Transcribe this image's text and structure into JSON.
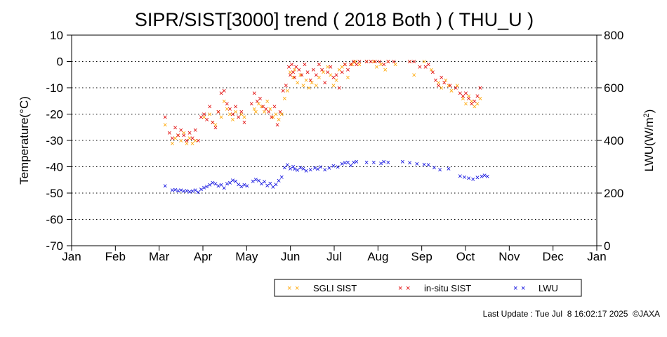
{
  "chart_data": {
    "type": "scatter",
    "title": "SIPR/SIST[3000] trend ( 2018 Both ) ( THU_U )",
    "x_months": [
      "Jan",
      "Feb",
      "Mar",
      "Apr",
      "May",
      "Jun",
      "Jul",
      "Aug",
      "Sep",
      "Oct",
      "Nov",
      "Dec",
      "Jan"
    ],
    "ylabel_left": "Temperature(°C)",
    "ylabel_right_main": "LWU(W/m",
    "ylabel_right_sup": "2",
    "ylabel_right_close": ")",
    "ylim_left": [
      -70,
      10
    ],
    "yticks_left": [
      "10",
      "0",
      "-10",
      "-20",
      "-30",
      "-40",
      "-50",
      "-60",
      "-70"
    ],
    "ylim_right": [
      0,
      800
    ],
    "yticks_right": [
      "800",
      "600",
      "400",
      "200",
      "0"
    ],
    "grid": "horizontal-dotted",
    "marker_glyph": "×",
    "colors": {
      "sgli": "#ffa500",
      "insitu": "#e00000",
      "lwu": "#0000dd"
    },
    "series": [
      {
        "name": "SGLI SIST",
        "axis": "left",
        "points": [
          [
            65,
            -24
          ],
          [
            70,
            -31
          ],
          [
            72,
            -29
          ],
          [
            74,
            -28
          ],
          [
            76,
            -30
          ],
          [
            78,
            -27
          ],
          [
            80,
            -31
          ],
          [
            82,
            -29
          ],
          [
            84,
            -31
          ],
          [
            86,
            -30
          ],
          [
            92,
            -21
          ],
          [
            96,
            -20
          ],
          [
            98,
            -23
          ],
          [
            100,
            -24
          ],
          [
            102,
            -19
          ],
          [
            104,
            -21
          ],
          [
            106,
            -15
          ],
          [
            108,
            -18
          ],
          [
            110,
            -20
          ],
          [
            112,
            -22
          ],
          [
            114,
            -19
          ],
          [
            118,
            -20
          ],
          [
            120,
            -21
          ],
          [
            127,
            -18
          ],
          [
            128,
            -19
          ],
          [
            130,
            -16
          ],
          [
            132,
            -17
          ],
          [
            134,
            -19
          ],
          [
            136,
            -15
          ],
          [
            138,
            -18
          ],
          [
            140,
            -21
          ],
          [
            142,
            -20
          ],
          [
            144,
            -22
          ],
          [
            146,
            -20
          ],
          [
            148,
            -14
          ],
          [
            150,
            -11
          ],
          [
            152,
            -4
          ],
          [
            154,
            -6
          ],
          [
            155,
            -3
          ],
          [
            157,
            -8
          ],
          [
            159,
            -5
          ],
          [
            161,
            -9
          ],
          [
            163,
            -7
          ],
          [
            165,
            -10
          ],
          [
            167,
            -8
          ],
          [
            170,
            -9
          ],
          [
            172,
            -6
          ],
          [
            175,
            -4
          ],
          [
            178,
            -2
          ],
          [
            180,
            -5
          ],
          [
            182,
            -9
          ],
          [
            184,
            -7
          ],
          [
            186,
            -3
          ],
          [
            188,
            -2
          ],
          [
            190,
            -1
          ],
          [
            192,
            -6
          ],
          [
            195,
            -1
          ],
          [
            197,
            0
          ],
          [
            200,
            -1
          ],
          [
            205,
            0
          ],
          [
            210,
            0
          ],
          [
            212,
            -2
          ],
          [
            215,
            -1
          ],
          [
            218,
            -3
          ],
          [
            220,
            0
          ],
          [
            225,
            -1
          ],
          [
            235,
            0
          ],
          [
            238,
            -5
          ],
          [
            245,
            0
          ],
          [
            250,
            -3
          ],
          [
            255,
            -8
          ],
          [
            257,
            -10
          ],
          [
            260,
            -7
          ],
          [
            262,
            -9
          ],
          [
            264,
            -11
          ],
          [
            268,
            -9
          ],
          [
            272,
            -14
          ],
          [
            274,
            -16
          ],
          [
            276,
            -13
          ],
          [
            278,
            -15
          ],
          [
            280,
            -17
          ],
          [
            282,
            -16
          ],
          [
            284,
            -14
          ]
        ]
      },
      {
        "name": "in-situ SIST",
        "axis": "left",
        "points": [
          [
            65,
            -21
          ],
          [
            68,
            -27
          ],
          [
            70,
            -29
          ],
          [
            72,
            -25
          ],
          [
            74,
            -28
          ],
          [
            76,
            -26
          ],
          [
            78,
            -28
          ],
          [
            80,
            -30
          ],
          [
            82,
            -27
          ],
          [
            84,
            -29
          ],
          [
            86,
            -26
          ],
          [
            88,
            -30
          ],
          [
            90,
            -21
          ],
          [
            92,
            -20
          ],
          [
            94,
            -22
          ],
          [
            96,
            -17
          ],
          [
            98,
            -23
          ],
          [
            100,
            -25
          ],
          [
            102,
            -19
          ],
          [
            104,
            -12
          ],
          [
            106,
            -11
          ],
          [
            108,
            -16
          ],
          [
            110,
            -18
          ],
          [
            112,
            -20
          ],
          [
            114,
            -17
          ],
          [
            116,
            -21
          ],
          [
            118,
            -19
          ],
          [
            120,
            -23
          ],
          [
            125,
            -16
          ],
          [
            127,
            -12
          ],
          [
            129,
            -15
          ],
          [
            131,
            -14
          ],
          [
            133,
            -17
          ],
          [
            135,
            -18
          ],
          [
            137,
            -19
          ],
          [
            139,
            -21
          ],
          [
            141,
            -17
          ],
          [
            143,
            -24
          ],
          [
            145,
            -19
          ],
          [
            147,
            -11
          ],
          [
            149,
            -9
          ],
          [
            151,
            -2
          ],
          [
            152,
            -5
          ],
          [
            153,
            -1
          ],
          [
            154,
            -4
          ],
          [
            155,
            -6
          ],
          [
            156,
            -2
          ],
          [
            158,
            -3
          ],
          [
            160,
            -5
          ],
          [
            162,
            -1
          ],
          [
            164,
            -4
          ],
          [
            166,
            -7
          ],
          [
            168,
            -3
          ],
          [
            170,
            -5
          ],
          [
            172,
            -1
          ],
          [
            174,
            -3
          ],
          [
            176,
            -8
          ],
          [
            178,
            -4
          ],
          [
            180,
            -2
          ],
          [
            182,
            -6
          ],
          [
            184,
            -5
          ],
          [
            186,
            -10
          ],
          [
            188,
            -4
          ],
          [
            190,
            -1
          ],
          [
            192,
            -3
          ],
          [
            194,
            -1
          ],
          [
            196,
            0
          ],
          [
            198,
            -1
          ],
          [
            200,
            0
          ],
          [
            205,
            0
          ],
          [
            208,
            0
          ],
          [
            211,
            0
          ],
          [
            214,
            0
          ],
          [
            217,
            -1
          ],
          [
            220,
            0
          ],
          [
            224,
            0
          ],
          [
            235,
            0
          ],
          [
            238,
            0
          ],
          [
            242,
            -2
          ],
          [
            246,
            -2
          ],
          [
            248,
            -1
          ],
          [
            251,
            -4
          ],
          [
            253,
            -7
          ],
          [
            255,
            -9
          ],
          [
            257,
            -6
          ],
          [
            259,
            -8
          ],
          [
            263,
            -9
          ],
          [
            267,
            -10
          ],
          [
            270,
            -12
          ],
          [
            272,
            -13
          ],
          [
            274,
            -12
          ],
          [
            276,
            -14
          ],
          [
            278,
            -16
          ],
          [
            280,
            -15
          ],
          [
            282,
            -13
          ],
          [
            284,
            -10
          ]
        ]
      },
      {
        "name": "LWU",
        "axis": "right",
        "points": [
          [
            65,
            228
          ],
          [
            70,
            212
          ],
          [
            72,
            214
          ],
          [
            74,
            210
          ],
          [
            76,
            212
          ],
          [
            78,
            208
          ],
          [
            80,
            210
          ],
          [
            82,
            206
          ],
          [
            84,
            208
          ],
          [
            86,
            212
          ],
          [
            88,
            204
          ],
          [
            90,
            215
          ],
          [
            92,
            222
          ],
          [
            94,
            226
          ],
          [
            96,
            232
          ],
          [
            98,
            240
          ],
          [
            100,
            236
          ],
          [
            102,
            228
          ],
          [
            104,
            232
          ],
          [
            106,
            220
          ],
          [
            108,
            236
          ],
          [
            110,
            240
          ],
          [
            112,
            250
          ],
          [
            114,
            246
          ],
          [
            116,
            234
          ],
          [
            118,
            226
          ],
          [
            120,
            232
          ],
          [
            122,
            228
          ],
          [
            126,
            246
          ],
          [
            128,
            252
          ],
          [
            130,
            248
          ],
          [
            132,
            236
          ],
          [
            134,
            244
          ],
          [
            136,
            230
          ],
          [
            138,
            238
          ],
          [
            140,
            224
          ],
          [
            142,
            234
          ],
          [
            144,
            248
          ],
          [
            146,
            262
          ],
          [
            148,
            298
          ],
          [
            150,
            308
          ],
          [
            152,
            294
          ],
          [
            154,
            302
          ],
          [
            155,
            292
          ],
          [
            157,
            288
          ],
          [
            159,
            298
          ],
          [
            161,
            294
          ],
          [
            163,
            286
          ],
          [
            166,
            290
          ],
          [
            169,
            296
          ],
          [
            171,
            292
          ],
          [
            173,
            300
          ],
          [
            176,
            290
          ],
          [
            179,
            296
          ],
          [
            182,
            304
          ],
          [
            185,
            300
          ],
          [
            188,
            312
          ],
          [
            190,
            316
          ],
          [
            192,
            318
          ],
          [
            194,
            306
          ],
          [
            196,
            318
          ],
          [
            198,
            320
          ],
          [
            205,
            318
          ],
          [
            210,
            318
          ],
          [
            215,
            314
          ],
          [
            217,
            320
          ],
          [
            220,
            318
          ],
          [
            230,
            320
          ],
          [
            235,
            316
          ],
          [
            240,
            312
          ],
          [
            245,
            310
          ],
          [
            248,
            308
          ],
          [
            252,
            298
          ],
          [
            256,
            290
          ],
          [
            262,
            294
          ],
          [
            270,
            266
          ],
          [
            273,
            262
          ],
          [
            276,
            258
          ],
          [
            279,
            254
          ],
          [
            282,
            260
          ],
          [
            285,
            264
          ],
          [
            287,
            268
          ],
          [
            289,
            264
          ]
        ]
      }
    ],
    "legend": {
      "position": "bottom-right",
      "items": [
        "SGLI SIST",
        "in-situ SIST",
        "LWU"
      ]
    }
  },
  "footer": {
    "last_update": "Last Update : Tue Jul  8 16:02:17 2025  ©JAXA"
  }
}
